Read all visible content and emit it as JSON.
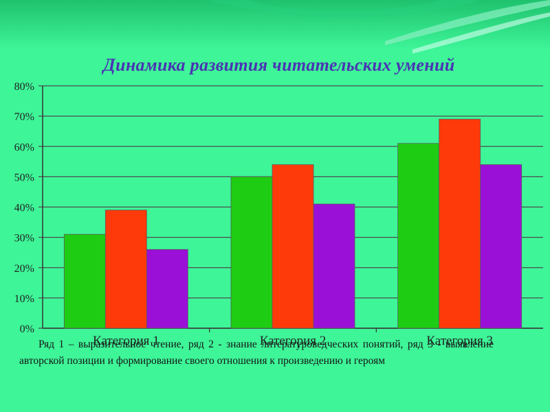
{
  "colors": {
    "background": "#3ef598",
    "series": [
      "#1fcc14",
      "#ff3a0a",
      "#9b10d6"
    ]
  },
  "chart_data": {
    "type": "bar",
    "title": "Динамика развития читательских умений",
    "categories": [
      "Категория 1",
      "Категория 2",
      "Категория 3"
    ],
    "series": [
      {
        "values": [
          31,
          50,
          61
        ]
      },
      {
        "values": [
          39,
          54,
          69
        ]
      },
      {
        "values": [
          26,
          41,
          54
        ]
      }
    ],
    "ylim": [
      0,
      80
    ],
    "yticks": [
      "0%",
      "10%",
      "20%",
      "30%",
      "40%",
      "50%",
      "60%",
      "70%",
      "80%"
    ],
    "grid": true,
    "legend": "none"
  },
  "caption": "Ряд 1 – выразительное чтение, ряд 2 - знание литературоведческих понятий, ряд 3 - выявление авторской позиции и формирование своего отношения к произведению и героям"
}
